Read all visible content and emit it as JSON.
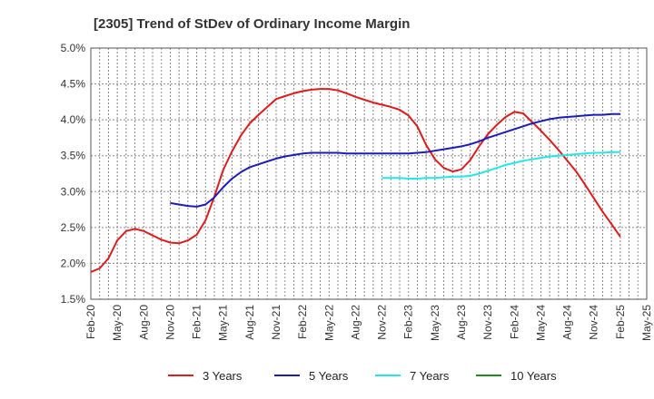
{
  "chart_data": {
    "type": "line",
    "title": "[2305]  Trend of StDev of Ordinary Income Margin",
    "xlabel": "",
    "ylabel": "",
    "x_ticks": [
      "Feb-20",
      "May-20",
      "Aug-20",
      "Nov-20",
      "Feb-21",
      "May-21",
      "Aug-21",
      "Nov-21",
      "Feb-22",
      "May-22",
      "Aug-22",
      "Nov-22",
      "Feb-23",
      "May-23",
      "Aug-23",
      "Nov-23",
      "Feb-24",
      "May-24",
      "Aug-24",
      "Nov-24",
      "Feb-25",
      "May-25"
    ],
    "y_ticks": [
      "1.5%",
      "2.0%",
      "2.5%",
      "3.0%",
      "3.5%",
      "4.0%",
      "4.5%",
      "5.0%"
    ],
    "ylim": [
      1.5,
      5.0
    ],
    "x_range_months": [
      0,
      63
    ],
    "grid": true,
    "legend_position": "bottom",
    "series": [
      {
        "name": "3 Years",
        "color": "#dd1c1c",
        "x": [
          0,
          1,
          2,
          3,
          4,
          5,
          6,
          7,
          8,
          9,
          10,
          11,
          12,
          13,
          14,
          15,
          16,
          17,
          18,
          19,
          20,
          21,
          22,
          23,
          24,
          25,
          26,
          27,
          28,
          29,
          30,
          31,
          32,
          33,
          34,
          35,
          36,
          37,
          38,
          39,
          40,
          41,
          42,
          43,
          44,
          45,
          46,
          47,
          48,
          49,
          50,
          51,
          52,
          53,
          54,
          55,
          56,
          57,
          58,
          59,
          60
        ],
        "values": [
          1.88,
          1.93,
          2.07,
          2.32,
          2.45,
          2.48,
          2.45,
          2.39,
          2.33,
          2.29,
          2.28,
          2.32,
          2.4,
          2.6,
          2.93,
          3.3,
          3.56,
          3.78,
          3.95,
          4.07,
          4.18,
          4.29,
          4.33,
          4.37,
          4.4,
          4.42,
          4.43,
          4.43,
          4.41,
          4.37,
          4.32,
          4.28,
          4.24,
          4.21,
          4.18,
          4.14,
          4.06,
          3.91,
          3.65,
          3.45,
          3.33,
          3.28,
          3.31,
          3.44,
          3.63,
          3.8,
          3.93,
          4.04,
          4.11,
          4.09,
          3.97,
          3.85,
          3.72,
          3.58,
          3.43,
          3.28,
          3.1,
          2.91,
          2.72,
          2.55,
          2.37
        ]
      },
      {
        "name": "5 Years",
        "color": "#1c1cbb",
        "x": [
          9,
          10,
          11,
          12,
          13,
          14,
          15,
          16,
          17,
          18,
          19,
          20,
          21,
          22,
          23,
          24,
          25,
          26,
          27,
          28,
          29,
          30,
          31,
          32,
          33,
          34,
          35,
          36,
          37,
          38,
          39,
          40,
          41,
          42,
          43,
          44,
          45,
          46,
          47,
          48,
          49,
          50,
          51,
          52,
          53,
          54,
          55,
          56,
          57,
          58,
          59,
          60
        ],
        "values": [
          2.84,
          2.82,
          2.8,
          2.79,
          2.82,
          2.92,
          3.06,
          3.18,
          3.27,
          3.34,
          3.38,
          3.42,
          3.46,
          3.49,
          3.51,
          3.53,
          3.54,
          3.54,
          3.54,
          3.54,
          3.53,
          3.53,
          3.53,
          3.53,
          3.53,
          3.53,
          3.53,
          3.53,
          3.54,
          3.55,
          3.57,
          3.59,
          3.61,
          3.63,
          3.66,
          3.7,
          3.75,
          3.79,
          3.83,
          3.87,
          3.91,
          3.95,
          3.98,
          4.01,
          4.03,
          4.04,
          4.05,
          4.06,
          4.07,
          4.07,
          4.08,
          4.08
        ]
      },
      {
        "name": "7 Years",
        "color": "#22e8e8",
        "x": [
          33,
          34,
          35,
          36,
          37,
          38,
          39,
          40,
          41,
          42,
          43,
          44,
          45,
          46,
          47,
          48,
          49,
          50,
          51,
          52,
          53,
          54,
          55,
          56,
          57,
          58,
          59,
          60
        ],
        "values": [
          3.19,
          3.19,
          3.19,
          3.18,
          3.18,
          3.19,
          3.19,
          3.2,
          3.21,
          3.21,
          3.22,
          3.25,
          3.29,
          3.33,
          3.37,
          3.4,
          3.43,
          3.45,
          3.47,
          3.49,
          3.5,
          3.51,
          3.52,
          3.53,
          3.54,
          3.54,
          3.55,
          3.55
        ]
      },
      {
        "name": "10 Years",
        "color": "#1e8c1e",
        "x": [],
        "values": []
      }
    ]
  }
}
